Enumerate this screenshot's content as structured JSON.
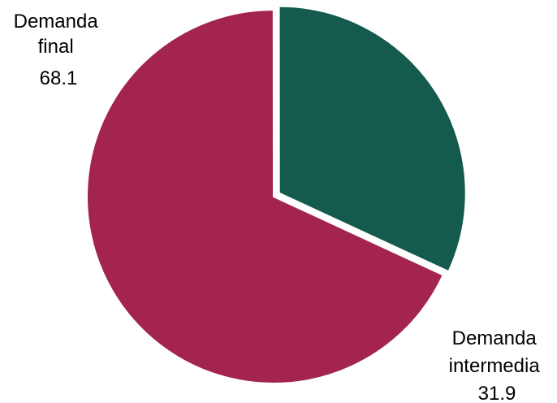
{
  "chart_data": {
    "type": "pie",
    "title": "",
    "slices": [
      {
        "label_lines": [
          "Demanda",
          "final"
        ],
        "value": 68.1,
        "value_label": "68.1",
        "color": "#A3244F"
      },
      {
        "label_lines": [
          "Demanda",
          "intermedia"
        ],
        "value": 31.9,
        "value_label": "31.9",
        "color": "#145A4D"
      }
    ],
    "exploded": true,
    "legend": "none"
  }
}
